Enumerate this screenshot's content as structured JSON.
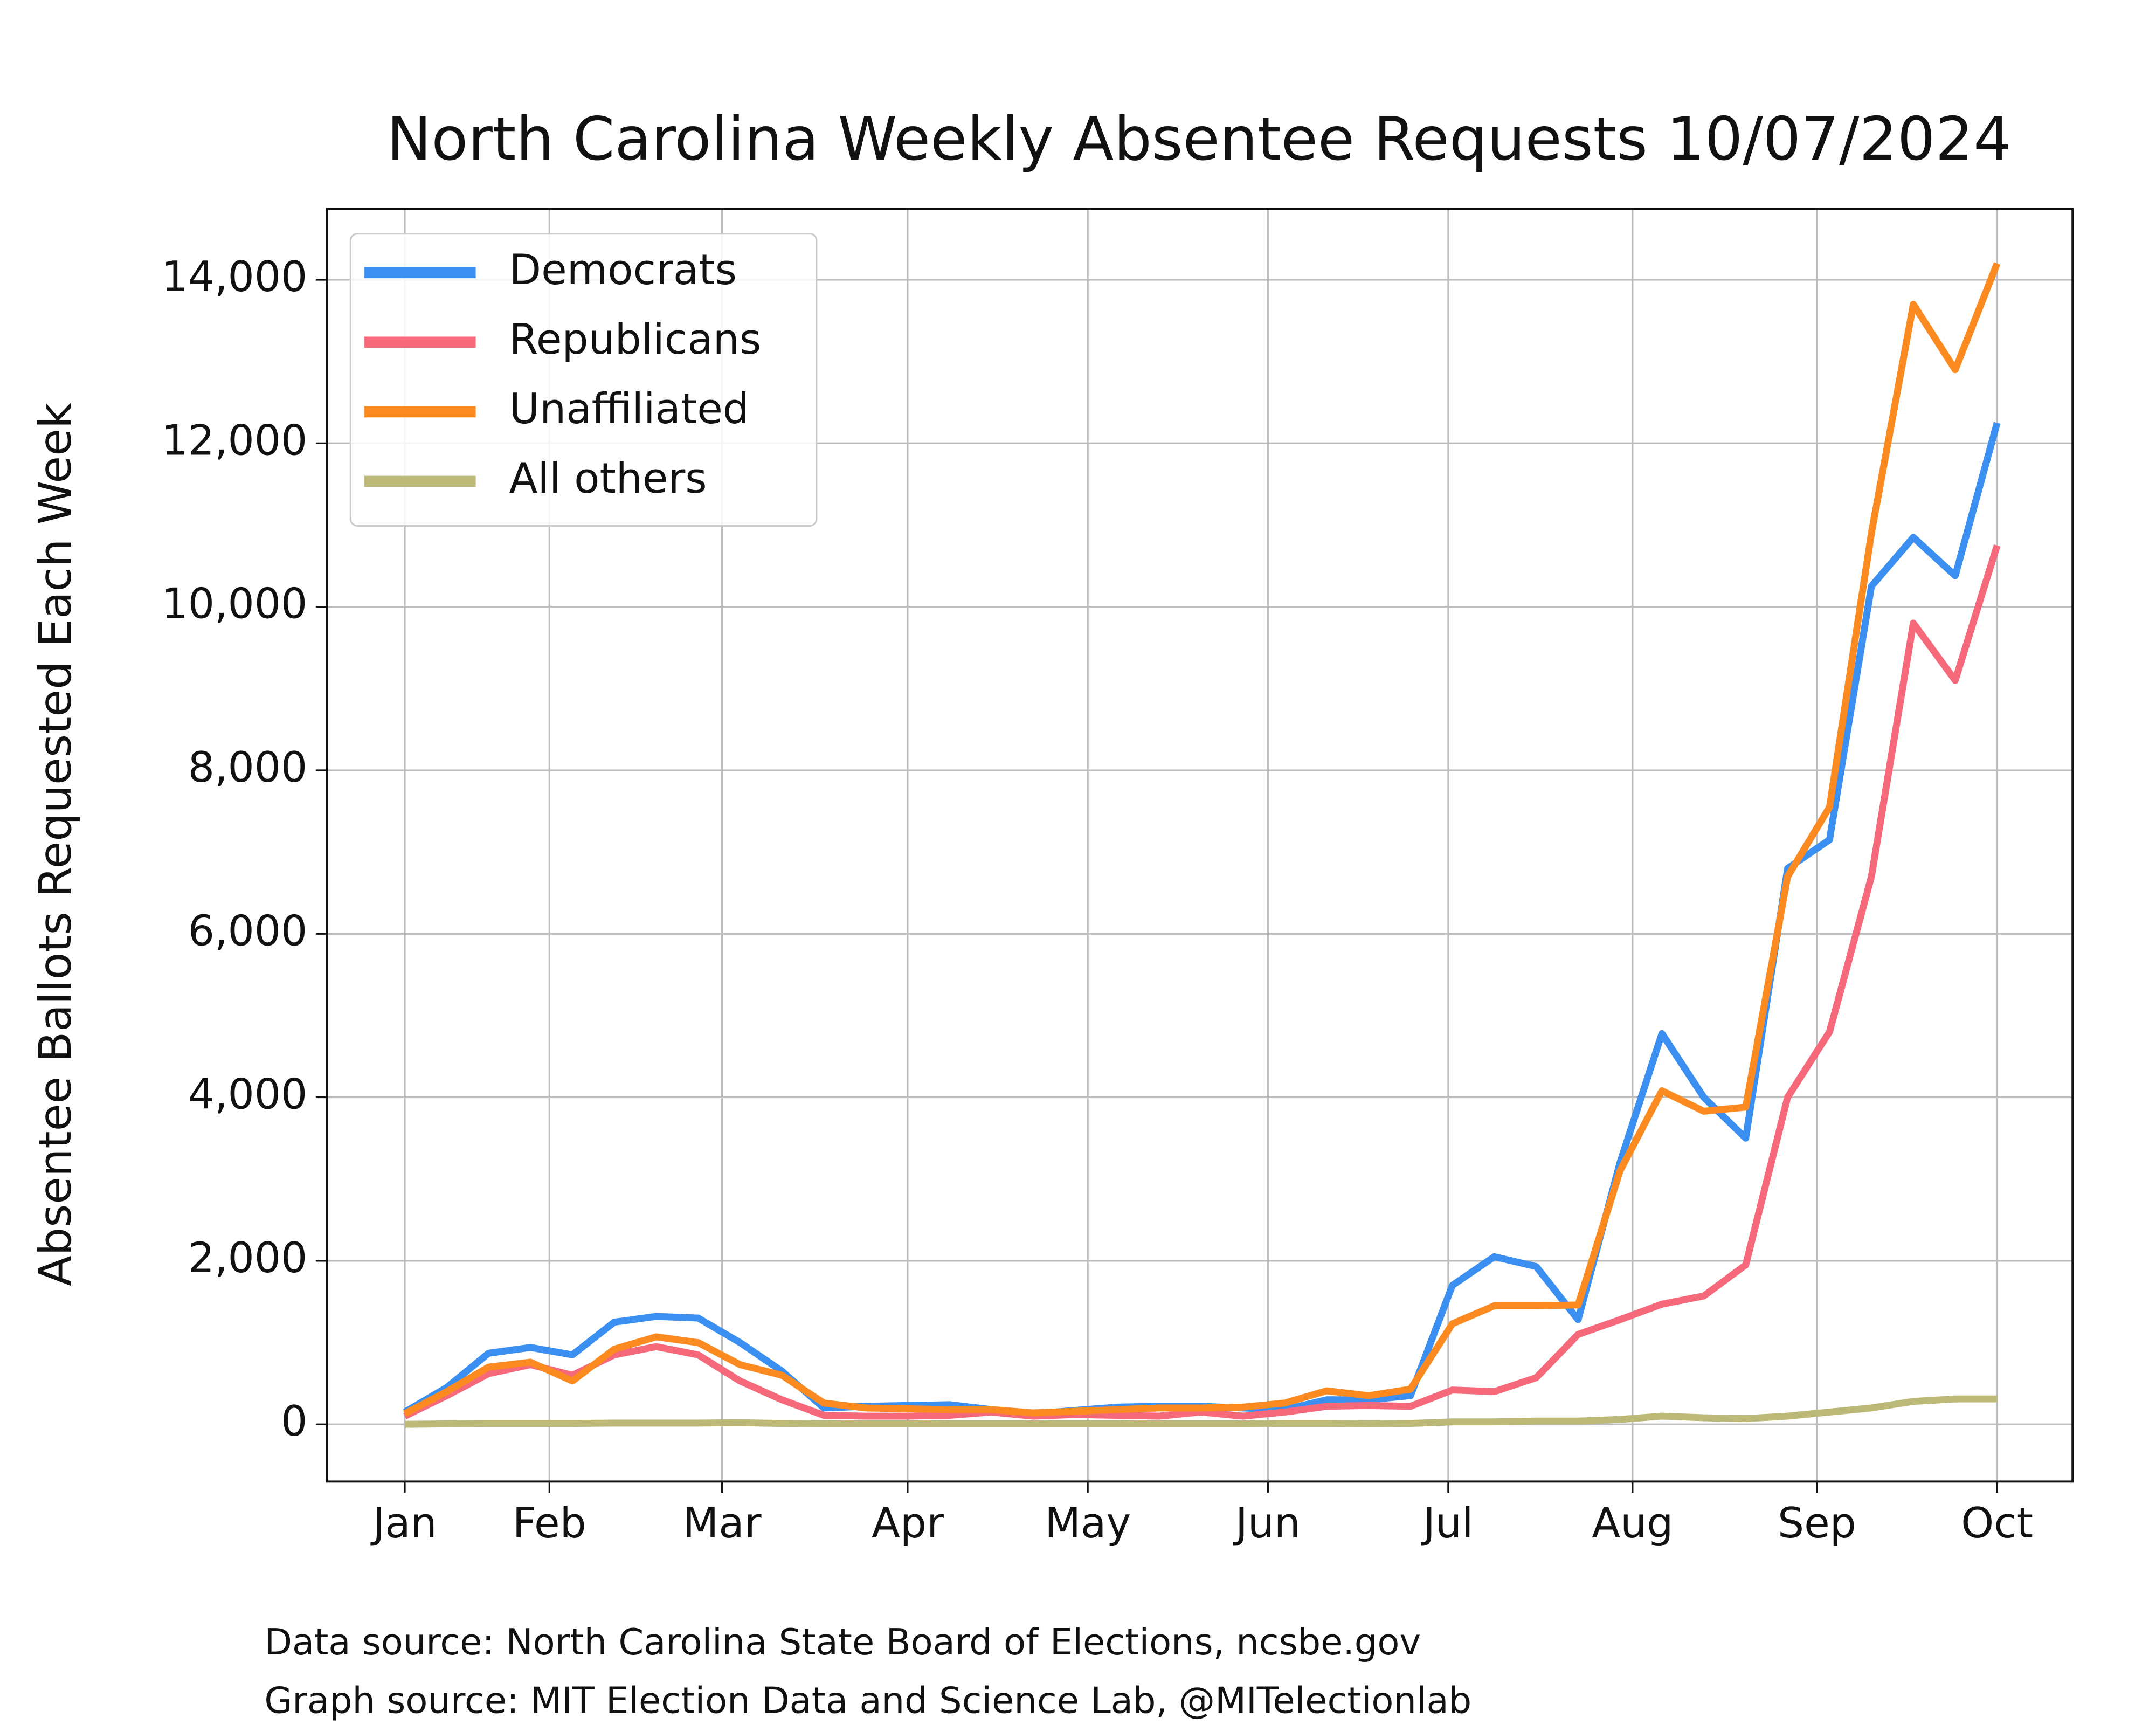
{
  "chart_data": {
    "type": "line",
    "title": "North Carolina Weekly Absentee Requests 10/07/2024",
    "y_label": "Absentee Ballots Requested Each Week",
    "sources": [
      "Data source: North Carolina State Board of Elections, ncsbe.gov",
      "Graph source: MIT Election Data and Science Lab, @MITelectionlab"
    ],
    "x": [
      0,
      1,
      2,
      3,
      4,
      5,
      6,
      7,
      8,
      9,
      10,
      11,
      12,
      13,
      14,
      15,
      16,
      17,
      18,
      19,
      20,
      21,
      22,
      23,
      24,
      25,
      26,
      27,
      28,
      29,
      30,
      31,
      32,
      33,
      34,
      35,
      36,
      37,
      38
    ],
    "series": [
      {
        "name": "Democrats",
        "color": "#3b8ff0",
        "values": [
          150,
          450,
          870,
          940,
          850,
          1250,
          1320,
          1300,
          1000,
          650,
          200,
          220,
          230,
          240,
          180,
          130,
          170,
          210,
          220,
          220,
          200,
          180,
          300,
          300,
          350,
          1700,
          2050,
          1930,
          1280,
          3200,
          4780,
          4000,
          3500,
          6800,
          7150,
          10250,
          10850,
          10380,
          12250
        ]
      },
      {
        "name": "Republicans",
        "color": "#f5697a",
        "values": [
          100,
          350,
          620,
          730,
          600,
          850,
          950,
          850,
          530,
          300,
          110,
          100,
          100,
          110,
          150,
          100,
          120,
          110,
          100,
          150,
          100,
          150,
          220,
          230,
          220,
          420,
          400,
          570,
          1100,
          1280,
          1470,
          1570,
          1950,
          4000,
          4800,
          6700,
          9800,
          9100,
          10750
        ]
      },
      {
        "name": "Unaffiliated",
        "color": "#fb8a21",
        "values": [
          130,
          400,
          700,
          760,
          530,
          920,
          1070,
          1000,
          730,
          600,
          260,
          200,
          190,
          180,
          180,
          140,
          160,
          180,
          200,
          200,
          210,
          260,
          410,
          350,
          430,
          1230,
          1450,
          1450,
          1460,
          3100,
          4080,
          3830,
          3880,
          6700,
          7550,
          10900,
          13700,
          12900,
          14200
        ]
      },
      {
        "name": "All others",
        "color": "#bcb878",
        "values": [
          0,
          5,
          10,
          10,
          10,
          15,
          15,
          15,
          20,
          10,
          5,
          5,
          5,
          5,
          5,
          5,
          5,
          5,
          5,
          5,
          5,
          10,
          10,
          5,
          10,
          30,
          30,
          40,
          40,
          60,
          100,
          80,
          70,
          100,
          150,
          200,
          280,
          310,
          310
        ]
      }
    ],
    "xlim": [
      -1.86,
      39.8
    ],
    "xticks": [
      {
        "value": 0,
        "label": "Jan"
      },
      {
        "value": 3.45,
        "label": "Feb"
      },
      {
        "value": 7.57,
        "label": "Mar"
      },
      {
        "value": 12.0,
        "label": "Apr"
      },
      {
        "value": 16.3,
        "label": "May"
      },
      {
        "value": 20.6,
        "label": "Jun"
      },
      {
        "value": 24.9,
        "label": "Jul"
      },
      {
        "value": 29.3,
        "label": "Aug"
      },
      {
        "value": 33.7,
        "label": "Sep"
      },
      {
        "value": 38,
        "label": "Oct"
      }
    ],
    "ylim": [
      -700,
      14870
    ],
    "yticks": [
      0,
      {
        "value": 2000,
        "label": "2,000"
      },
      {
        "value": 4000,
        "label": "4,000"
      },
      {
        "value": 6000,
        "label": "6,000"
      },
      {
        "value": 8000,
        "label": "8,000"
      },
      {
        "value": 10000,
        "label": "10,000"
      },
      {
        "value": 12000,
        "label": "12,000"
      },
      {
        "value": 14000,
        "label": "14,000"
      }
    ],
    "grid": true,
    "legend": "upper left"
  }
}
